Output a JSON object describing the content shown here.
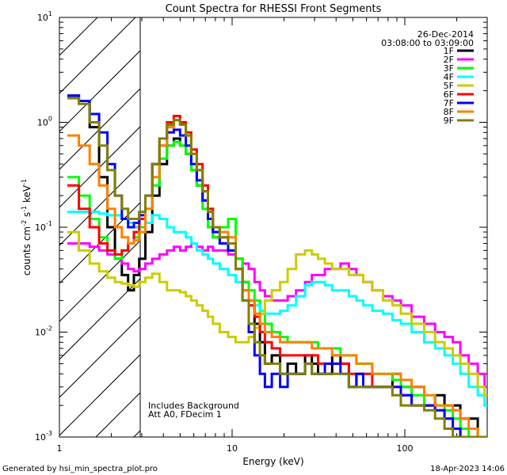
{
  "footer": {
    "generated_by": "Generated by hsi_min_spectra_plot.pro",
    "timestamp": "18-Apr-2023 14:06"
  },
  "chart_data": {
    "type": "line",
    "title": "Count Spectra for RHESSI Front Segments",
    "xlabel": "Energy (keV)",
    "ylabel_base": "counts cm",
    "ylabel_exp1": "-2",
    "ylabel_mid1": " s",
    "ylabel_exp2": "-1",
    "ylabel_mid2": " keV",
    "ylabel_exp3": "-1",
    "xscale": "log",
    "yscale": "log",
    "xlim": [
      1,
      300
    ],
    "ylim": [
      0.001,
      10
    ],
    "x_ticks": [
      {
        "value": 1,
        "label": "1"
      },
      {
        "value": 10,
        "label": "10"
      },
      {
        "value": 100,
        "label": "100"
      }
    ],
    "y_ticks": [
      {
        "value": 0.001,
        "base": "10",
        "exp": "-3"
      },
      {
        "value": 0.01,
        "base": "10",
        "exp": "-2"
      },
      {
        "value": 0.1,
        "base": "10",
        "exp": "-1"
      },
      {
        "value": 1,
        "base": "10",
        "exp": "0"
      },
      {
        "value": 10,
        "base": "10",
        "exp": "1"
      }
    ],
    "date_text": "26-Dec-2014",
    "time_range_text": "03:08:00 to 03:09:00",
    "notes": [
      "Includes Background",
      "Att A0, FDecim 1"
    ],
    "hatched_region_x": [
      1,
      3
    ],
    "legend_position": "top-right",
    "series": [
      {
        "name": "1F",
        "color": "#000000",
        "x": [
          1.2,
          1.4,
          1.6,
          1.8,
          2.0,
          2.2,
          2.4,
          2.6,
          2.8,
          3.0,
          3.3,
          3.6,
          4.0,
          4.4,
          4.8,
          5.2,
          5.6,
          6.0,
          6.5,
          7.0,
          7.5,
          8.0,
          9.0,
          10.0,
          11.0,
          12.0,
          13.0,
          14.0,
          15.0,
          16.0,
          18.0,
          20.0,
          22.0,
          25.0,
          28.0,
          30.0,
          33.0,
          36.0,
          40.0,
          45.0,
          50.0,
          55.0,
          60.0,
          70.0,
          80.0,
          90.0,
          100.0,
          120.0,
          140.0,
          160.0,
          180.0,
          200.0,
          220.0,
          250.0,
          280.0,
          300.0
        ],
        "y": [
          1.8,
          1.6,
          0.9,
          0.3,
          0.1,
          0.05,
          0.035,
          0.025,
          0.035,
          0.05,
          0.09,
          0.2,
          0.4,
          0.6,
          0.7,
          0.6,
          0.5,
          0.35,
          0.25,
          0.18,
          0.12,
          0.08,
          0.07,
          0.06,
          0.05,
          0.03,
          0.02,
          0.012,
          0.008,
          0.005,
          0.006,
          0.004,
          0.005,
          0.004,
          0.006,
          0.005,
          0.004,
          0.004,
          0.006,
          0.005,
          0.003,
          0.004,
          0.003,
          0.003,
          0.003,
          0.004,
          0.003,
          0.003,
          0.002,
          0.0025,
          0.002,
          0.002,
          0.0015,
          0.0015,
          0.001,
          0.001
        ]
      },
      {
        "name": "2F",
        "color": "#ff00ff",
        "x": [
          1.2,
          1.4,
          1.6,
          1.8,
          2.0,
          2.2,
          2.4,
          2.6,
          2.8,
          3.0,
          3.3,
          3.6,
          4.0,
          4.4,
          4.8,
          5.2,
          5.6,
          6.0,
          6.5,
          7.0,
          7.5,
          8.0,
          9.0,
          10.0,
          11.0,
          12.0,
          13.0,
          14.0,
          15.0,
          16.0,
          18.0,
          20.0,
          22.0,
          25.0,
          28.0,
          30.0,
          33.0,
          36.0,
          40.0,
          45.0,
          50.0,
          55.0,
          60.0,
          70.0,
          80.0,
          90.0,
          100.0,
          120.0,
          140.0,
          160.0,
          180.0,
          200.0,
          220.0,
          250.0,
          280.0,
          300.0
        ],
        "y": [
          0.07,
          0.07,
          0.065,
          0.06,
          0.055,
          0.05,
          0.045,
          0.04,
          0.038,
          0.04,
          0.045,
          0.05,
          0.055,
          0.06,
          0.065,
          0.06,
          0.065,
          0.07,
          0.065,
          0.06,
          0.065,
          0.06,
          0.06,
          0.055,
          0.05,
          0.045,
          0.04,
          0.03,
          0.025,
          0.022,
          0.02,
          0.02,
          0.022,
          0.025,
          0.03,
          0.035,
          0.035,
          0.04,
          0.04,
          0.045,
          0.04,
          0.035,
          0.03,
          0.025,
          0.022,
          0.02,
          0.018,
          0.014,
          0.012,
          0.01,
          0.009,
          0.008,
          0.006,
          0.005,
          0.004,
          0.003
        ]
      },
      {
        "name": "3F",
        "color": "#00ff00",
        "x": [
          1.2,
          1.4,
          1.6,
          1.8,
          2.0,
          2.2,
          2.4,
          2.6,
          2.8,
          3.0,
          3.3,
          3.6,
          4.0,
          4.4,
          4.8,
          5.2,
          5.6,
          6.0,
          6.5,
          7.0,
          7.5,
          8.0,
          9.0,
          10.0,
          11.0,
          12.0,
          13.0,
          14.0,
          15.0,
          16.0,
          18.0,
          20.0,
          22.0,
          25.0,
          28.0,
          30.0,
          33.0,
          36.0,
          40.0,
          45.0,
          50.0,
          55.0,
          60.0,
          70.0,
          80.0,
          90.0,
          100.0,
          120.0,
          140.0,
          160.0,
          180.0,
          200.0,
          220.0,
          250.0,
          280.0,
          300.0
        ],
        "y": [
          0.3,
          0.2,
          0.12,
          0.08,
          0.06,
          0.05,
          0.06,
          0.07,
          0.08,
          0.1,
          0.15,
          0.25,
          0.45,
          0.6,
          0.65,
          0.6,
          0.5,
          0.35,
          0.25,
          0.15,
          0.1,
          0.08,
          0.1,
          0.12,
          0.05,
          0.03,
          0.025,
          0.02,
          0.015,
          0.012,
          0.01,
          0.009,
          0.008,
          0.008,
          0.008,
          0.008,
          0.007,
          0.007,
          0.007,
          0.006,
          0.006,
          0.005,
          0.005,
          0.004,
          0.004,
          0.0035,
          0.003,
          0.0025,
          0.002,
          0.002,
          0.0018,
          0.0015,
          0.0012,
          0.001,
          0.001,
          0.001
        ]
      },
      {
        "name": "4F",
        "color": "#00ffff",
        "x": [
          1.2,
          1.4,
          1.6,
          1.8,
          2.0,
          2.2,
          2.4,
          2.6,
          2.8,
          3.0,
          3.3,
          3.6,
          4.0,
          4.4,
          4.8,
          5.2,
          5.6,
          6.0,
          6.5,
          7.0,
          7.5,
          8.0,
          9.0,
          10.0,
          11.0,
          12.0,
          13.0,
          14.0,
          15.0,
          16.0,
          18.0,
          20.0,
          22.0,
          25.0,
          28.0,
          30.0,
          33.0,
          36.0,
          40.0,
          45.0,
          50.0,
          55.0,
          60.0,
          70.0,
          80.0,
          90.0,
          100.0,
          120.0,
          140.0,
          160.0,
          180.0,
          200.0,
          220.0,
          250.0,
          280.0,
          300.0
        ],
        "y": [
          0.14,
          0.14,
          0.14,
          0.135,
          0.13,
          0.13,
          0.12,
          0.11,
          0.1,
          0.09,
          0.11,
          0.13,
          0.12,
          0.1,
          0.09,
          0.09,
          0.08,
          0.07,
          0.06,
          0.055,
          0.05,
          0.045,
          0.04,
          0.035,
          0.03,
          0.025,
          0.02,
          0.018,
          0.016,
          0.015,
          0.015,
          0.016,
          0.018,
          0.022,
          0.028,
          0.03,
          0.03,
          0.028,
          0.025,
          0.025,
          0.022,
          0.02,
          0.018,
          0.016,
          0.015,
          0.013,
          0.012,
          0.01,
          0.008,
          0.007,
          0.006,
          0.005,
          0.004,
          0.003,
          0.0025,
          0.002
        ]
      },
      {
        "name": "5F",
        "color": "#cccc00",
        "x": [
          1.2,
          1.4,
          1.6,
          1.8,
          2.0,
          2.2,
          2.4,
          2.6,
          2.8,
          3.0,
          3.3,
          3.6,
          4.0,
          4.4,
          4.8,
          5.2,
          5.6,
          6.0,
          6.5,
          7.0,
          7.5,
          8.0,
          9.0,
          10.0,
          11.0,
          12.0,
          13.0,
          14.0,
          15.0,
          16.0,
          18.0,
          20.0,
          22.0,
          25.0,
          28.0,
          30.0,
          33.0,
          36.0,
          40.0,
          45.0,
          50.0,
          55.0,
          60.0,
          70.0,
          80.0,
          90.0,
          100.0,
          120.0,
          140.0,
          160.0,
          180.0,
          200.0,
          220.0,
          250.0,
          280.0,
          300.0
        ],
        "y": [
          0.09,
          0.06,
          0.045,
          0.038,
          0.033,
          0.03,
          0.029,
          0.028,
          0.027,
          0.03,
          0.033,
          0.036,
          0.03,
          0.025,
          0.025,
          0.024,
          0.022,
          0.02,
          0.018,
          0.016,
          0.014,
          0.012,
          0.01,
          0.009,
          0.008,
          0.008,
          0.009,
          0.011,
          0.015,
          0.02,
          0.025,
          0.03,
          0.04,
          0.055,
          0.06,
          0.055,
          0.05,
          0.045,
          0.04,
          0.04,
          0.035,
          0.035,
          0.03,
          0.025,
          0.02,
          0.018,
          0.015,
          0.012,
          0.01,
          0.008,
          0.007,
          0.006,
          0.005,
          0.004,
          0.003,
          0.0025
        ]
      },
      {
        "name": "6F",
        "color": "#ff0000",
        "x": [
          1.2,
          1.4,
          1.6,
          1.8,
          2.0,
          2.2,
          2.4,
          2.6,
          2.8,
          3.0,
          3.3,
          3.6,
          4.0,
          4.4,
          4.8,
          5.2,
          5.6,
          6.0,
          6.5,
          7.0,
          7.5,
          8.0,
          9.0,
          10.0,
          11.0,
          12.0,
          13.0,
          14.0,
          15.0,
          16.0,
          18.0,
          20.0,
          22.0,
          25.0,
          28.0,
          30.0,
          33.0,
          36.0,
          40.0,
          45.0,
          50.0,
          55.0,
          60.0,
          70.0,
          80.0,
          90.0,
          100.0,
          120.0,
          140.0,
          160.0,
          180.0,
          200.0,
          220.0,
          250.0,
          280.0,
          300.0
        ],
        "y": [
          0.25,
          0.15,
          0.1,
          0.07,
          0.06,
          0.055,
          0.06,
          0.07,
          0.09,
          0.12,
          0.2,
          0.4,
          0.7,
          1.0,
          1.15,
          1.0,
          0.8,
          0.55,
          0.4,
          0.25,
          0.15,
          0.1,
          0.08,
          0.07,
          0.04,
          0.025,
          0.018,
          0.014,
          0.01,
          0.008,
          0.007,
          0.006,
          0.006,
          0.006,
          0.006,
          0.006,
          0.005,
          0.005,
          0.005,
          0.005,
          0.004,
          0.004,
          0.004,
          0.003,
          0.003,
          0.003,
          0.0025,
          0.002,
          0.002,
          0.0018,
          0.0015,
          0.0012,
          0.001,
          0.001,
          0.001,
          0.001
        ]
      },
      {
        "name": "7F",
        "color": "#0000ff",
        "x": [
          1.2,
          1.4,
          1.6,
          1.8,
          2.0,
          2.2,
          2.4,
          2.6,
          2.8,
          3.0,
          3.3,
          3.6,
          4.0,
          4.4,
          4.8,
          5.2,
          5.6,
          6.0,
          6.5,
          7.0,
          7.5,
          8.0,
          9.0,
          10.0,
          11.0,
          12.0,
          13.0,
          14.0,
          15.0,
          16.0,
          18.0,
          20.0,
          22.0,
          25.0,
          28.0,
          30.0,
          33.0,
          36.0,
          40.0,
          45.0,
          50.0,
          55.0,
          60.0,
          70.0,
          80.0,
          90.0,
          100.0,
          120.0,
          140.0,
          160.0,
          180.0,
          200.0,
          220.0,
          250.0,
          280.0,
          300.0
        ],
        "y": [
          1.8,
          1.6,
          1.2,
          0.8,
          0.4,
          0.2,
          0.12,
          0.1,
          0.11,
          0.13,
          0.2,
          0.4,
          0.6,
          0.8,
          0.85,
          0.75,
          0.6,
          0.4,
          0.28,
          0.18,
          0.12,
          0.09,
          0.07,
          0.06,
          0.04,
          0.02,
          0.01,
          0.006,
          0.004,
          0.003,
          0.004,
          0.003,
          0.004,
          0.004,
          0.005,
          0.004,
          0.004,
          0.005,
          0.005,
          0.004,
          0.003,
          0.004,
          0.003,
          0.003,
          0.003,
          0.003,
          0.0025,
          0.002,
          0.002,
          0.0018,
          0.0015,
          0.0012,
          0.001,
          0.001,
          0.001,
          0.001
        ]
      },
      {
        "name": "8F",
        "color": "#ff8000",
        "x": [
          1.2,
          1.4,
          1.6,
          1.8,
          2.0,
          2.2,
          2.4,
          2.6,
          2.8,
          3.0,
          3.3,
          3.6,
          4.0,
          4.4,
          4.8,
          5.2,
          5.6,
          6.0,
          6.5,
          7.0,
          7.5,
          8.0,
          9.0,
          10.0,
          11.0,
          12.0,
          13.0,
          14.0,
          15.0,
          16.0,
          18.0,
          20.0,
          22.0,
          25.0,
          28.0,
          30.0,
          33.0,
          36.0,
          40.0,
          45.0,
          50.0,
          55.0,
          60.0,
          70.0,
          80.0,
          90.0,
          100.0,
          120.0,
          140.0,
          160.0,
          180.0,
          200.0,
          220.0,
          250.0,
          280.0,
          300.0
        ],
        "y": [
          0.75,
          0.6,
          0.4,
          0.25,
          0.15,
          0.1,
          0.08,
          0.07,
          0.075,
          0.09,
          0.15,
          0.3,
          0.6,
          0.9,
          1.05,
          0.95,
          0.75,
          0.5,
          0.35,
          0.22,
          0.14,
          0.1,
          0.09,
          0.08,
          0.04,
          0.025,
          0.02,
          0.015,
          0.012,
          0.01,
          0.009,
          0.008,
          0.008,
          0.008,
          0.008,
          0.007,
          0.007,
          0.007,
          0.006,
          0.006,
          0.006,
          0.005,
          0.005,
          0.004,
          0.004,
          0.004,
          0.0035,
          0.003,
          0.0025,
          0.002,
          0.002,
          0.0018,
          0.0015,
          0.0012,
          0.001,
          0.001
        ]
      },
      {
        "name": "9F",
        "color": "#808000",
        "x": [
          1.2,
          1.4,
          1.6,
          1.8,
          2.0,
          2.2,
          2.4,
          2.6,
          2.8,
          3.0,
          3.3,
          3.6,
          4.0,
          4.4,
          4.8,
          5.2,
          5.6,
          6.0,
          6.5,
          7.0,
          7.5,
          8.0,
          9.0,
          10.0,
          11.0,
          12.0,
          13.0,
          14.0,
          15.0,
          16.0,
          18.0,
          20.0,
          22.0,
          25.0,
          28.0,
          30.0,
          33.0,
          36.0,
          40.0,
          45.0,
          50.0,
          55.0,
          60.0,
          70.0,
          80.0,
          90.0,
          100.0,
          120.0,
          140.0,
          160.0,
          180.0,
          200.0,
          220.0,
          250.0,
          280.0,
          300.0
        ],
        "y": [
          1.7,
          1.5,
          1.0,
          0.6,
          0.35,
          0.2,
          0.15,
          0.12,
          0.12,
          0.14,
          0.2,
          0.4,
          0.7,
          0.95,
          1.05,
          0.95,
          0.75,
          0.5,
          0.35,
          0.22,
          0.14,
          0.1,
          0.08,
          0.07,
          0.04,
          0.02,
          0.012,
          0.008,
          0.006,
          0.005,
          0.005,
          0.004,
          0.004,
          0.004,
          0.005,
          0.004,
          0.004,
          0.004,
          0.004,
          0.004,
          0.003,
          0.003,
          0.003,
          0.003,
          0.003,
          0.0025,
          0.002,
          0.002,
          0.0018,
          0.0015,
          0.0012,
          0.001,
          0.001,
          0.001,
          0.001,
          0.001
        ]
      }
    ]
  }
}
